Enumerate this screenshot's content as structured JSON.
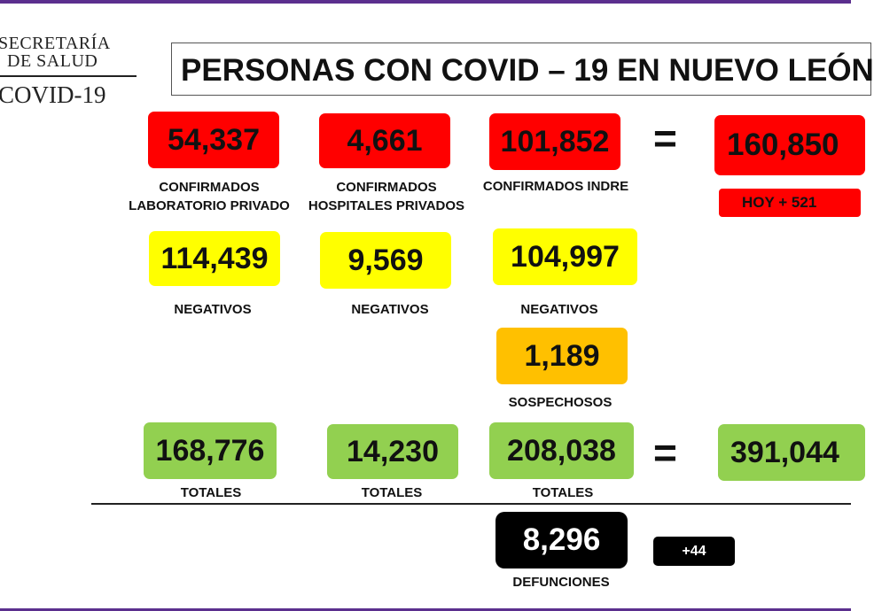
{
  "logo": {
    "line1": "SECRETARÍA",
    "line2": "DE SALUD",
    "line3": "COVID-19"
  },
  "title": "PERSONAS CON COVID – 19 EN NUEVO LEÓN",
  "operators": {
    "equals": "="
  },
  "confirmed": {
    "private_lab": {
      "value": "54,337",
      "label_line1": "CONFIRMADOS",
      "label_line2": "LABORATORIO PRIVADO"
    },
    "private_hospitals": {
      "value": "4,661",
      "label_line1": "CONFIRMADOS",
      "label_line2": "HOSPITALES PRIVADOS"
    },
    "indre": {
      "value": "101,852",
      "label": "CONFIRMADOS INDRE"
    },
    "total": {
      "value": "160,850",
      "today": "HOY + 521"
    }
  },
  "negatives": {
    "private_lab": {
      "value": "114,439",
      "label": "NEGATIVOS"
    },
    "private_hospitals": {
      "value": "9,569",
      "label": "NEGATIVOS"
    },
    "indre": {
      "value": "104,997",
      "label": "NEGATIVOS"
    }
  },
  "suspects": {
    "value": "1,189",
    "label": "SOSPECHOSOS"
  },
  "totals": {
    "private_lab": {
      "value": "168,776",
      "label": "TOTALES"
    },
    "private_hospitals": {
      "value": "14,230",
      "label": "TOTALES"
    },
    "indre": {
      "value": "208,038",
      "label": "TOTALES"
    },
    "grand_total": {
      "value": "391,044"
    }
  },
  "deaths": {
    "value": "8,296",
    "label": "DEFUNCIONES",
    "today": "+44"
  },
  "colors": {
    "confirmed": "#ff0000",
    "negative": "#ffff00",
    "suspect": "#ffc000",
    "total": "#92d050",
    "deaths": "#000000",
    "frame": "#5b2f8e"
  }
}
